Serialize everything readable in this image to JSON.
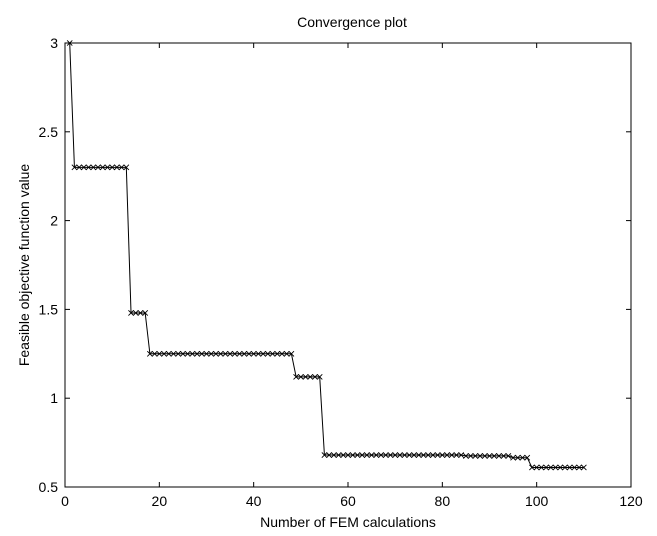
{
  "chart_data": {
    "type": "line",
    "title": "Convergence plot",
    "xlabel": "Number of FEM calculations",
    "ylabel": "Feasible objective function value",
    "xlim": [
      0,
      120
    ],
    "ylim": [
      0.5,
      3
    ],
    "xticks": [
      0,
      20,
      40,
      60,
      80,
      100,
      120
    ],
    "yticks": [
      0.5,
      1,
      1.5,
      2,
      2.5,
      3
    ],
    "xtick_labels": [
      "0",
      "20",
      "40",
      "60",
      "80",
      "100",
      "120"
    ],
    "ytick_labels": [
      "0.5",
      "1",
      "1.5",
      "2",
      "2.5",
      "3"
    ],
    "grid": false,
    "legend": "none",
    "marker": "x",
    "line_color": "#000000",
    "series": [
      {
        "segments": [
          {
            "from": 1,
            "to": 1,
            "value": 3.0
          },
          {
            "from": 2,
            "to": 13,
            "value": 2.3
          },
          {
            "from": 14,
            "to": 17,
            "value": 1.48
          },
          {
            "from": 18,
            "to": 48,
            "value": 1.25
          },
          {
            "from": 49,
            "to": 54,
            "value": 1.12
          },
          {
            "from": 55,
            "to": 84,
            "value": 0.68
          },
          {
            "from": 85,
            "to": 94,
            "value": 0.675
          },
          {
            "from": 95,
            "to": 98,
            "value": 0.665
          },
          {
            "from": 99,
            "to": 110,
            "value": 0.61
          }
        ]
      }
    ]
  }
}
